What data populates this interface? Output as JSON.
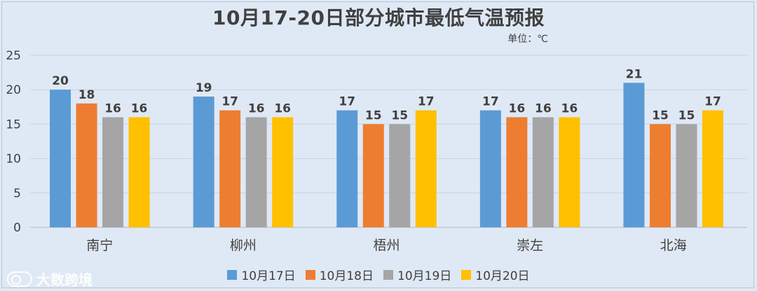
{
  "title": "10月17-20日部分城市最低气温预报",
  "unit_label": "单位：℃",
  "watermark": "大数跨境",
  "chart_data": {
    "type": "bar",
    "categories": [
      "南宁",
      "柳州",
      "梧州",
      "崇左",
      "北海"
    ],
    "series": [
      {
        "name": "10月17日",
        "color": "#5b9bd5",
        "values": [
          20,
          19,
          17,
          17,
          21
        ]
      },
      {
        "name": "10月18日",
        "color": "#ed7d31",
        "values": [
          18,
          17,
          15,
          16,
          15
        ]
      },
      {
        "name": "10月19日",
        "color": "#a5a5a5",
        "values": [
          16,
          16,
          15,
          16,
          15
        ]
      },
      {
        "name": "10月20日",
        "color": "#ffc000",
        "values": [
          16,
          16,
          17,
          16,
          17
        ]
      }
    ],
    "ylim": [
      0,
      25
    ],
    "yticks": [
      0,
      5,
      10,
      15,
      20,
      25
    ],
    "grid": true,
    "legend_position": "bottom"
  }
}
